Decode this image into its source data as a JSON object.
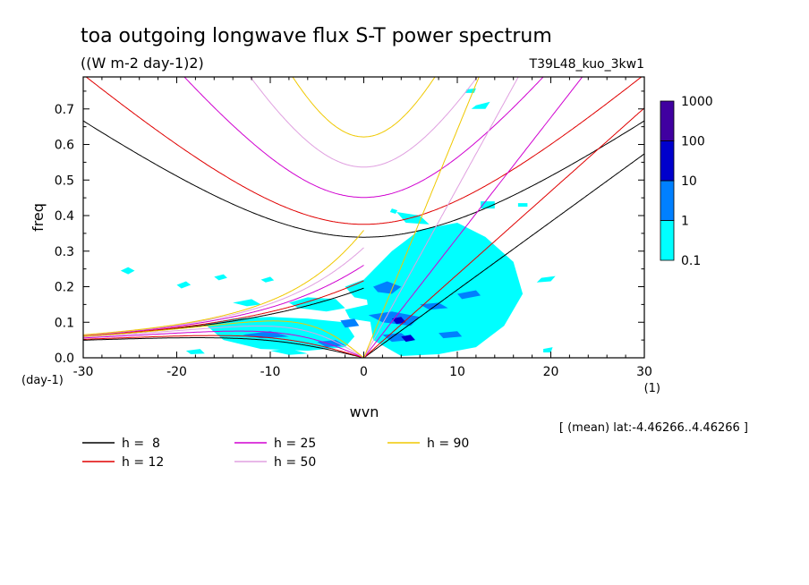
{
  "chart_data": {
    "type": "heatmap",
    "title": "toa outgoing longwave flux S-T power spectrum",
    "subtitle": "((W m-2 day-1)2)",
    "run_label": "T39L48_kuo_3kw1",
    "xlabel": "wvn",
    "ylabel": "freq",
    "x_unit": "(1)",
    "y_unit": "(day-1)",
    "xlim": [
      -30,
      30
    ],
    "ylim": [
      0,
      0.79
    ],
    "xticks": [
      "-30",
      "-20",
      "-10",
      "0",
      "10",
      "20",
      "30"
    ],
    "yticks": [
      "0.0",
      "0.1",
      "0.2",
      "0.3",
      "0.4",
      "0.5",
      "0.6",
      "0.7"
    ],
    "footnote": "[ (mean) lat:-4.46266..4.46266 ]",
    "colorbar": {
      "levels": [
        "0.1",
        "1",
        "10",
        "100",
        "1000"
      ],
      "colors": [
        "#00ffff",
        "#0080ff",
        "#0000cc",
        "#4000a0"
      ]
    },
    "dispersion_curves": [
      {
        "name": "h =  8",
        "h": 8,
        "color": "#000000"
      },
      {
        "name": "h = 12",
        "h": 12,
        "color": "#e00000"
      },
      {
        "name": "h = 25",
        "h": 25,
        "color": "#d000d0"
      },
      {
        "name": "h = 50",
        "h": 50,
        "color": "#e0a0e0"
      },
      {
        "name": "h = 90",
        "h": 90,
        "color": "#f0c800"
      }
    ],
    "power_regions": [
      {
        "level": 1,
        "x": [
          -26,
          -25.2,
          -24.5,
          -25.2
        ],
        "y": [
          0.245,
          0.255,
          0.245,
          0.235
        ]
      },
      {
        "level": 1,
        "x": [
          -20,
          -19,
          -18.5,
          -19.5
        ],
        "y": [
          0.205,
          0.215,
          0.205,
          0.195
        ]
      },
      {
        "level": 1,
        "x": [
          -16,
          -15,
          -14.6,
          -15.5
        ],
        "y": [
          0.228,
          0.235,
          0.225,
          0.218
        ]
      },
      {
        "level": 1,
        "x": [
          -11,
          -10,
          -9.6,
          -10.5
        ],
        "y": [
          0.22,
          0.228,
          0.218,
          0.212
        ]
      },
      {
        "level": 1,
        "x": [
          -14,
          -12,
          -11,
          -12.5
        ],
        "y": [
          0.155,
          0.165,
          0.15,
          0.145
        ]
      },
      {
        "level": 1,
        "x": [
          -8,
          -6,
          -3,
          -2,
          -4,
          -7
        ],
        "y": [
          0.155,
          0.17,
          0.165,
          0.14,
          0.13,
          0.14
        ]
      },
      {
        "level": 1,
        "x": [
          -17,
          -14,
          -10,
          -6,
          -2,
          -1,
          -2,
          -6,
          -11,
          -15
        ],
        "y": [
          0.095,
          0.11,
          0.115,
          0.11,
          0.1,
          0.06,
          0.03,
          0.02,
          0.025,
          0.05
        ]
      },
      {
        "level": 1,
        "x": [
          -19,
          -17.5,
          -17,
          -18.5
        ],
        "y": [
          0.02,
          0.025,
          0.012,
          0.01
        ]
      },
      {
        "level": 1,
        "x": [
          -10,
          -8,
          -6,
          -8
        ],
        "y": [
          0.02,
          0.026,
          0.012,
          0.008
        ]
      },
      {
        "level": 1,
        "x": [
          -2,
          0,
          2,
          1,
          -1
        ],
        "y": [
          0.2,
          0.22,
          0.19,
          0.16,
          0.17
        ]
      },
      {
        "level": 1,
        "x": [
          -2,
          0.5,
          2,
          1,
          -1.5
        ],
        "y": [
          0.135,
          0.15,
          0.13,
          0.1,
          0.11
        ]
      },
      {
        "level": 1,
        "x": [
          0,
          3,
          6,
          10,
          13,
          16,
          17,
          15,
          12,
          8,
          4,
          1
        ],
        "y": [
          0.22,
          0.3,
          0.36,
          0.38,
          0.34,
          0.27,
          0.18,
          0.09,
          0.03,
          0.01,
          0.005,
          0.05
        ]
      },
      {
        "level": 1,
        "x": [
          3.5,
          6,
          7,
          4.5
        ],
        "y": [
          0.41,
          0.4,
          0.375,
          0.38
        ]
      },
      {
        "level": 1,
        "x": [
          3,
          3.6,
          3.4,
          2.8
        ],
        "y": [
          0.42,
          0.415,
          0.405,
          0.41
        ]
      },
      {
        "level": 1,
        "x": [
          12.5,
          14,
          14,
          12.5
        ],
        "y": [
          0.44,
          0.44,
          0.42,
          0.42
        ]
      },
      {
        "level": 1,
        "x": [
          16.5,
          17.5,
          17.5,
          16.5
        ],
        "y": [
          0.435,
          0.435,
          0.425,
          0.425
        ]
      },
      {
        "level": 1,
        "x": [
          12,
          13.5,
          13,
          11.5
        ],
        "y": [
          0.71,
          0.72,
          0.7,
          0.7
        ]
      },
      {
        "level": 1,
        "x": [
          19,
          20.5,
          20,
          18.5
        ],
        "y": [
          0.225,
          0.23,
          0.215,
          0.212
        ]
      },
      {
        "level": 1,
        "x": [
          19.2,
          20.2,
          20,
          19.2
        ],
        "y": [
          0.025,
          0.03,
          0.015,
          0.015
        ]
      },
      {
        "level": 1,
        "x": [
          11,
          12,
          11.8,
          10.8
        ],
        "y": [
          0.755,
          0.758,
          0.745,
          0.745
        ]
      },
      {
        "level": 2,
        "x": [
          1,
          2.5,
          4,
          3,
          1.5
        ],
        "y": [
          0.2,
          0.215,
          0.2,
          0.18,
          0.185
        ]
      },
      {
        "level": 2,
        "x": [
          0.5,
          3,
          6,
          5,
          2
        ],
        "y": [
          0.12,
          0.13,
          0.115,
          0.09,
          0.1
        ]
      },
      {
        "level": 2,
        "x": [
          6,
          8,
          9,
          7
        ],
        "y": [
          0.15,
          0.155,
          0.14,
          0.135
        ]
      },
      {
        "level": 2,
        "x": [
          -5,
          -3,
          -2,
          -4
        ],
        "y": [
          0.045,
          0.05,
          0.035,
          0.03
        ]
      },
      {
        "level": 2,
        "x": [
          -13,
          -10,
          -8,
          -11
        ],
        "y": [
          0.065,
          0.075,
          0.06,
          0.055
        ]
      },
      {
        "level": 2,
        "x": [
          2,
          4,
          5,
          3
        ],
        "y": [
          0.065,
          0.07,
          0.05,
          0.045
        ]
      },
      {
        "level": 2,
        "x": [
          8,
          10,
          10.5,
          8.5
        ],
        "y": [
          0.07,
          0.075,
          0.06,
          0.055
        ]
      },
      {
        "level": 2,
        "x": [
          10,
          12,
          12.5,
          10.5
        ],
        "y": [
          0.18,
          0.19,
          0.175,
          0.165
        ]
      },
      {
        "level": 2,
        "x": [
          -2.5,
          -1,
          -0.5,
          -2
        ],
        "y": [
          0.105,
          0.11,
          0.09,
          0.085
        ]
      },
      {
        "level": 3,
        "x": [
          3,
          4,
          4.5,
          3.5
        ],
        "y": [
          0.11,
          0.115,
          0.1,
          0.095
        ]
      },
      {
        "level": 3,
        "x": [
          4,
          5,
          5.5,
          4.5
        ],
        "y": [
          0.06,
          0.065,
          0.05,
          0.045
        ]
      }
    ]
  }
}
